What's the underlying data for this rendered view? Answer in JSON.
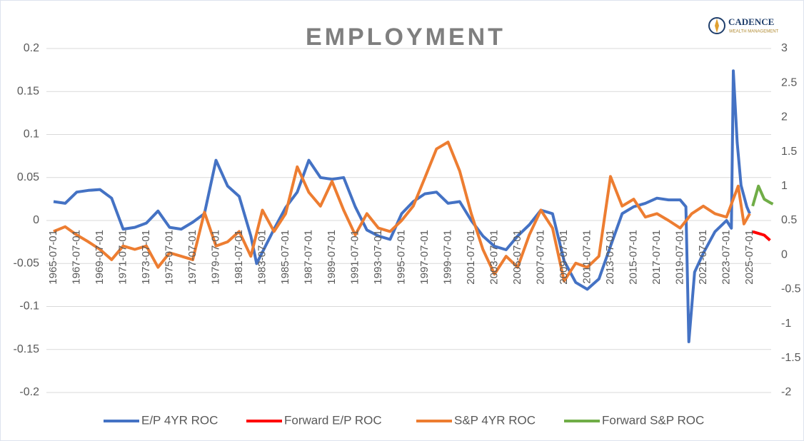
{
  "logo": {
    "name": "CADENCE",
    "tagline": "WEALTH MANAGEMENT"
  },
  "chart_data": {
    "type": "line",
    "title": "EMPLOYMENT",
    "xticks": [
      "1965-07-01",
      "1967-07-01",
      "1969-07-01",
      "1971-07-01",
      "1973-07-01",
      "1975-07-01",
      "1977-07-01",
      "1979-07-01",
      "1981-07-01",
      "1983-07-01",
      "1985-07-01",
      "1987-07-01",
      "1989-07-01",
      "1991-07-01",
      "1993-07-01",
      "1995-07-01",
      "1997-07-01",
      "1999-07-01",
      "2001-07-01",
      "2003-07-01",
      "2005-07-01",
      "2007-07-01",
      "2009-07-01",
      "2011-07-01",
      "2013-07-01",
      "2015-07-01",
      "2017-07-01",
      "2019-07-01",
      "2021-07-01",
      "2023-07-01",
      "2025-07-01"
    ],
    "ylim": [
      -0.2,
      0.2
    ],
    "yticks": [
      -0.2,
      -0.15,
      -0.1,
      -0.05,
      0,
      0.05,
      0.1,
      0.15,
      0.2
    ],
    "y2lim": [
      -2,
      3
    ],
    "y2ticks": [
      -2,
      -1.5,
      -1,
      -0.5,
      0,
      0.5,
      1,
      1.5,
      2,
      2.5,
      3
    ],
    "grid": true,
    "legend": "bottom",
    "series": [
      {
        "name": "E/P 4YR ROC",
        "color": "#4472c4",
        "x": [
          "1965-07-01",
          "1966-07-01",
          "1967-07-01",
          "1968-07-01",
          "1969-07-01",
          "1970-07-01",
          "1971-07-01",
          "1972-07-01",
          "1973-07-01",
          "1974-07-01",
          "1975-07-01",
          "1976-07-01",
          "1977-07-01",
          "1978-07-01",
          "1979-07-01",
          "1980-07-01",
          "1981-07-01",
          "1982-07-01",
          "1983-01-01",
          "1984-07-01",
          "1985-07-01",
          "1986-07-01",
          "1987-07-01",
          "1988-07-01",
          "1989-07-01",
          "1990-07-01",
          "1991-07-01",
          "1992-07-01",
          "1993-07-01",
          "1994-07-01",
          "1995-07-01",
          "1996-07-01",
          "1997-07-01",
          "1998-07-01",
          "1999-07-01",
          "2000-07-01",
          "2001-07-01",
          "2002-07-01",
          "2003-07-01",
          "2004-07-01",
          "2005-07-01",
          "2006-07-01",
          "2007-07-01",
          "2008-07-01",
          "2009-07-01",
          "2010-07-01",
          "2011-07-01",
          "2012-07-01",
          "2013-07-01",
          "2014-07-01",
          "2015-07-01",
          "2016-07-01",
          "2017-07-01",
          "2018-07-01",
          "2019-07-01",
          "2020-01-01",
          "2020-04-01",
          "2020-10-01",
          "2021-07-01",
          "2022-07-01",
          "2023-07-01",
          "2023-12-01",
          "2024-02-01",
          "2024-06-01",
          "2024-10-01",
          "2025-04-01",
          "2025-07-01"
        ],
        "values": [
          0.022,
          0.02,
          0.033,
          0.035,
          0.036,
          0.026,
          -0.01,
          -0.008,
          -0.003,
          0.011,
          -0.008,
          -0.01,
          -0.002,
          0.008,
          0.07,
          0.04,
          0.028,
          -0.018,
          -0.05,
          -0.01,
          0.015,
          0.033,
          0.07,
          0.05,
          0.048,
          0.05,
          0.016,
          -0.011,
          -0.018,
          -0.022,
          0.008,
          0.022,
          0.031,
          0.033,
          0.02,
          0.022,
          0,
          -0.018,
          -0.03,
          -0.034,
          -0.018,
          -0.005,
          0.012,
          0.008,
          -0.047,
          -0.072,
          -0.08,
          -0.068,
          -0.03,
          0.008,
          0.016,
          0.02,
          0.026,
          0.024,
          0.024,
          0.016,
          -0.141,
          -0.06,
          -0.038,
          -0.013,
          0,
          -0.009,
          0.174,
          0.091,
          0.041,
          0.016,
          0.008
        ]
      },
      {
        "name": "Forward E/P ROC",
        "color": "#ff0000",
        "x": [
          "2025-10-01",
          "2026-04-01",
          "2026-10-01",
          "2027-04-01"
        ],
        "values": [
          -0.013,
          -0.015,
          -0.017,
          -0.023
        ]
      },
      {
        "name": "S&P 4YR ROC",
        "color": "#ed7d31",
        "axis": "y2",
        "x": [
          "1965-07-01",
          "1966-07-01",
          "1967-07-01",
          "1968-07-01",
          "1969-07-01",
          "1970-07-01",
          "1971-07-01",
          "1972-07-01",
          "1973-07-01",
          "1974-07-01",
          "1975-07-01",
          "1976-07-01",
          "1977-07-01",
          "1978-07-01",
          "1979-07-01",
          "1980-07-01",
          "1981-07-01",
          "1982-07-01",
          "1983-07-01",
          "1984-07-01",
          "1985-07-01",
          "1986-07-01",
          "1987-07-01",
          "1988-07-01",
          "1989-07-01",
          "1990-07-01",
          "1991-07-01",
          "1992-07-01",
          "1993-07-01",
          "1994-07-01",
          "1995-07-01",
          "1996-07-01",
          "1997-07-01",
          "1998-07-01",
          "1999-07-01",
          "2000-07-01",
          "2001-07-01",
          "2002-07-01",
          "2003-07-01",
          "2004-07-01",
          "2005-07-01",
          "2006-07-01",
          "2007-07-01",
          "2008-07-01",
          "2009-07-01",
          "2010-07-01",
          "2011-07-01",
          "2012-07-01",
          "2013-07-01",
          "2014-07-01",
          "2015-07-01",
          "2016-07-01",
          "2017-07-01",
          "2018-07-01",
          "2019-07-01",
          "2020-07-01",
          "2021-07-01",
          "2022-07-01",
          "2023-07-01",
          "2024-07-01",
          "2025-01-01",
          "2025-07-01"
        ],
        "values": [
          0.34,
          0.41,
          0.29,
          0.19,
          0.08,
          -0.07,
          0.13,
          0.08,
          0.13,
          -0.18,
          0.03,
          -0.02,
          -0.07,
          0.62,
          0.13,
          0.19,
          0.34,
          -0.02,
          0.65,
          0.34,
          0.6,
          1.28,
          0.91,
          0.71,
          1.07,
          0.65,
          0.29,
          0.6,
          0.39,
          0.34,
          0.5,
          0.71,
          1.12,
          1.54,
          1.64,
          1.22,
          0.6,
          0.08,
          -0.28,
          -0.02,
          -0.18,
          0.29,
          0.65,
          0.39,
          -0.38,
          -0.12,
          -0.18,
          -0.02,
          1.14,
          0.71,
          0.81,
          0.55,
          0.6,
          0.5,
          0.39,
          0.6,
          0.71,
          0.6,
          0.55,
          1.0,
          0.45,
          0.6
        ]
      },
      {
        "name": "Forward S&P ROC",
        "color": "#70ad47",
        "axis": "y2",
        "x": [
          "2025-10-01",
          "2026-04-01",
          "2026-10-01",
          "2027-04-01",
          "2027-07-01"
        ],
        "values": [
          0.71,
          1.0,
          0.81,
          0.76,
          0.74
        ]
      }
    ]
  }
}
